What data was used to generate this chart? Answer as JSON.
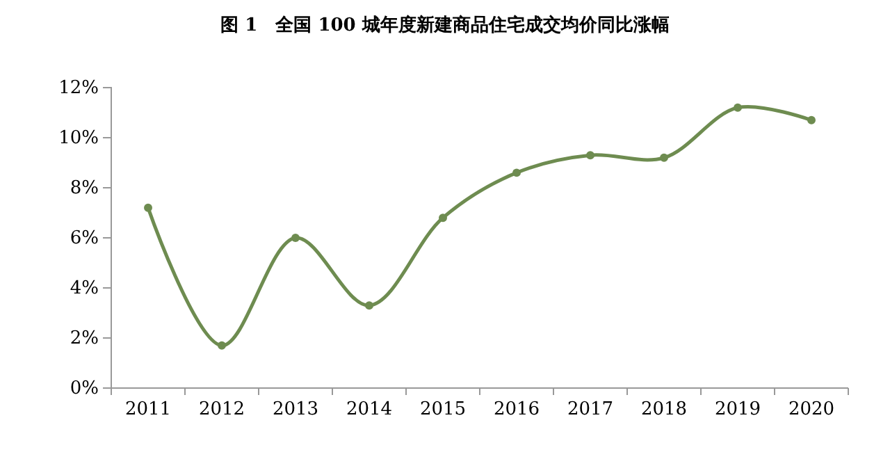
{
  "chart_data": {
    "type": "line",
    "title": "图 1　全国 100 城年度新建商品住宅成交均价同比涨幅",
    "categories": [
      "2011",
      "2012",
      "2013",
      "2014",
      "2015",
      "2016",
      "2017",
      "2018",
      "2019",
      "2020"
    ],
    "series": [
      {
        "color": "#6e8c50",
        "values": [
          7.2,
          1.7,
          6.0,
          3.3,
          6.8,
          8.6,
          9.3,
          9.2,
          11.2,
          10.7
        ]
      }
    ],
    "ylim": [
      0,
      12
    ],
    "yticks": [
      {
        "value": 0,
        "label": "0%"
      },
      {
        "value": 2,
        "label": "2%"
      },
      {
        "value": 4,
        "label": "4%"
      },
      {
        "value": 6,
        "label": "6%"
      },
      {
        "value": 8,
        "label": "8%"
      },
      {
        "value": 10,
        "label": "10%"
      },
      {
        "value": 12,
        "label": "12%"
      }
    ],
    "marker": "circle",
    "line_style": "solid",
    "grid": false
  }
}
